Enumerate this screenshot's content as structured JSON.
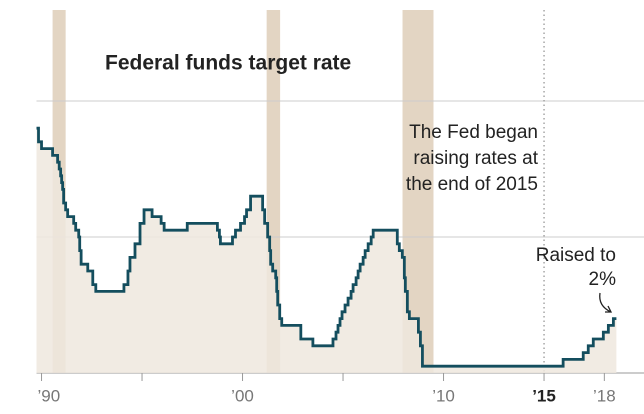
{
  "chart_data": {
    "type": "line",
    "title": "Federal funds target rate",
    "annotation": [
      "The Fed began",
      "raising rates at",
      "the end of 2015"
    ],
    "callout": [
      "Raised to",
      "2%"
    ],
    "step": "post",
    "area": true,
    "grid": true,
    "reference_line_x": 2015,
    "shaded_periods": [
      [
        1990.55,
        1991.2
      ],
      [
        2001.2,
        2001.87
      ],
      [
        2007.96,
        2009.5
      ]
    ],
    "shade_color": "#e3d5c3",
    "area_color": "#efe8de",
    "xlim": [
      1989.75,
      2018.6
    ],
    "ylim": [
      0,
      10.3
    ],
    "yticks": [
      0,
      5,
      10
    ],
    "xticks": [
      {
        "value": 1990,
        "label": "’90"
      },
      {
        "value": 1995,
        "label": null
      },
      {
        "value": 2000,
        "label": "’00"
      },
      {
        "value": 2005,
        "label": null
      },
      {
        "value": 2010,
        "label": "’10"
      },
      {
        "value": 2015,
        "label": "’15"
      },
      {
        "value": 2018,
        "label": "’18"
      }
    ],
    "series": [
      {
        "name": null,
        "color": "#144e5e",
        "x": [
          1989.75,
          1989.85,
          1990.0,
          1990.55,
          1990.8,
          1990.88,
          1990.95,
          1991.0,
          1991.05,
          1991.1,
          1991.2,
          1991.3,
          1991.6,
          1991.7,
          1991.85,
          1991.9,
          1991.97,
          1992.3,
          1992.55,
          1992.7,
          1994.1,
          1994.3,
          1994.4,
          1994.65,
          1994.9,
          1995.1,
          1995.5,
          1995.95,
          1996.1,
          1997.25,
          1998.75,
          1998.85,
          1998.9,
          1999.5,
          1999.65,
          1999.9,
          2000.1,
          2000.2,
          2000.4,
          2001.0,
          2001.1,
          2001.25,
          2001.35,
          2001.4,
          2001.5,
          2001.65,
          2001.7,
          2001.75,
          2001.85,
          2001.95,
          2002.9,
          2003.5,
          2004.5,
          2004.65,
          2004.75,
          2004.85,
          2004.95,
          2005.1,
          2005.25,
          2005.4,
          2005.5,
          2005.65,
          2005.75,
          2005.85,
          2006.0,
          2006.1,
          2006.25,
          2006.4,
          2006.5,
          2007.7,
          2007.8,
          2007.95,
          2008.05,
          2008.1,
          2008.2,
          2008.3,
          2008.75,
          2008.85,
          2008.95,
          2015.95,
          2016.95,
          2017.2,
          2017.45,
          2017.95,
          2018.2,
          2018.45
        ],
        "values": [
          9.0,
          8.5,
          8.25,
          8.0,
          7.75,
          7.5,
          7.25,
          7.0,
          6.75,
          6.25,
          6.0,
          5.75,
          5.5,
          5.25,
          5.0,
          4.5,
          4.0,
          3.75,
          3.25,
          3.0,
          3.25,
          3.75,
          4.25,
          4.75,
          5.5,
          6.0,
          5.75,
          5.5,
          5.25,
          5.5,
          5.25,
          5.0,
          4.75,
          5.0,
          5.25,
          5.5,
          5.75,
          6.0,
          6.5,
          6.0,
          5.5,
          5.0,
          4.5,
          4.0,
          3.75,
          3.5,
          3.0,
          2.5,
          2.0,
          1.75,
          1.25,
          1.0,
          1.25,
          1.5,
          1.75,
          2.0,
          2.25,
          2.5,
          2.75,
          3.0,
          3.25,
          3.5,
          3.75,
          4.0,
          4.25,
          4.5,
          4.75,
          5.0,
          5.25,
          4.75,
          4.5,
          4.25,
          3.5,
          3.0,
          2.25,
          2.0,
          1.5,
          1.0,
          0.25,
          0.5,
          0.75,
          1.0,
          1.25,
          1.5,
          1.75,
          2.0
        ]
      }
    ]
  }
}
